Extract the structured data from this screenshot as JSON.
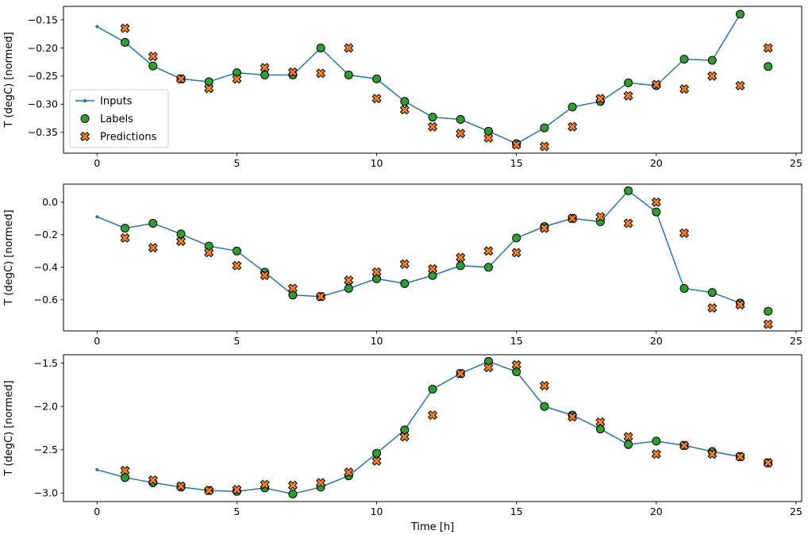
{
  "figure": {
    "xlabel": "Time [h]",
    "ylabel": "T (degC) [normed]",
    "background": "#ffffff",
    "colors": {
      "inputs": "#1f77b4",
      "labels": "#2ca02c",
      "predictions": "#ff7f0e",
      "marker_edge": "#000000",
      "axes": "#000000",
      "legend_border": "#cccccc"
    },
    "legend": {
      "position": "upper-plot-left",
      "items": [
        {
          "label": "Inputs",
          "marker": "line-dot"
        },
        {
          "label": "Labels",
          "marker": "circle"
        },
        {
          "label": "Predictions",
          "marker": "x"
        }
      ]
    }
  },
  "chart_data": [
    {
      "type": "line",
      "title": "",
      "xlabel": "",
      "ylabel": "T (degC) [normed]",
      "xlim": [
        -1.2,
        25.2
      ],
      "ylim": [
        -0.387,
        -0.126
      ],
      "xticks": [
        0,
        5,
        10,
        15,
        20,
        25
      ],
      "xtick_labels": [
        "0",
        "5",
        "10",
        "15",
        "20",
        "25"
      ],
      "yticks": [
        -0.15,
        -0.2,
        -0.25,
        -0.3,
        -0.35
      ],
      "ytick_labels": [
        "−0.15",
        "−0.20",
        "−0.25",
        "−0.30",
        "−0.35"
      ],
      "grid": false,
      "series": [
        {
          "name": "Inputs",
          "style": "line-dot",
          "x": [
            0,
            1,
            2,
            3,
            4,
            5,
            6,
            7,
            8,
            9,
            10,
            11,
            12,
            13,
            14,
            15,
            16,
            17,
            18,
            19,
            20,
            21,
            22,
            23
          ],
          "values": [
            -0.162,
            -0.19,
            -0.232,
            -0.255,
            -0.26,
            -0.244,
            -0.248,
            -0.248,
            -0.2,
            -0.248,
            -0.255,
            -0.295,
            -0.323,
            -0.327,
            -0.348,
            -0.37,
            -0.342,
            -0.305,
            -0.295,
            -0.262,
            -0.267,
            -0.22,
            -0.222,
            -0.14
          ]
        },
        {
          "name": "Labels",
          "style": "circle",
          "x": [
            1,
            2,
            3,
            4,
            5,
            6,
            7,
            8,
            9,
            10,
            11,
            12,
            13,
            14,
            15,
            16,
            17,
            18,
            19,
            20,
            21,
            22,
            23,
            24
          ],
          "values": [
            -0.19,
            -0.232,
            -0.255,
            -0.26,
            -0.244,
            -0.248,
            -0.248,
            -0.2,
            -0.248,
            -0.255,
            -0.295,
            -0.323,
            -0.327,
            -0.348,
            -0.37,
            -0.342,
            -0.305,
            -0.295,
            -0.262,
            -0.267,
            -0.22,
            -0.222,
            -0.14,
            -0.233
          ]
        },
        {
          "name": "Predictions",
          "style": "x",
          "x": [
            1,
            2,
            3,
            4,
            5,
            6,
            7,
            8,
            9,
            10,
            11,
            12,
            13,
            14,
            15,
            16,
            17,
            18,
            19,
            20,
            21,
            22,
            23,
            24
          ],
          "values": [
            -0.165,
            -0.215,
            -0.255,
            -0.272,
            -0.255,
            -0.235,
            -0.243,
            -0.245,
            -0.2,
            -0.29,
            -0.31,
            -0.34,
            -0.352,
            -0.36,
            -0.372,
            -0.375,
            -0.34,
            -0.29,
            -0.285,
            -0.265,
            -0.273,
            -0.25,
            -0.267,
            -0.2
          ]
        }
      ]
    },
    {
      "type": "line",
      "title": "",
      "xlabel": "",
      "ylabel": "T (degC) [normed]",
      "xlim": [
        -1.2,
        25.2
      ],
      "ylim": [
        -0.791,
        0.111
      ],
      "xticks": [
        0,
        5,
        10,
        15,
        20,
        25
      ],
      "xtick_labels": [
        "0",
        "5",
        "10",
        "15",
        "20",
        "25"
      ],
      "yticks": [
        0.0,
        -0.2,
        -0.4,
        -0.6
      ],
      "ytick_labels": [
        "0.0",
        "−0.2",
        "−0.4",
        "−0.6"
      ],
      "grid": false,
      "series": [
        {
          "name": "Inputs",
          "style": "line-dot",
          "x": [
            0,
            1,
            2,
            3,
            4,
            5,
            6,
            7,
            8,
            9,
            10,
            11,
            12,
            13,
            14,
            15,
            16,
            17,
            18,
            19,
            20,
            21,
            22,
            23
          ],
          "values": [
            -0.09,
            -0.16,
            -0.13,
            -0.195,
            -0.27,
            -0.3,
            -0.43,
            -0.57,
            -0.58,
            -0.53,
            -0.47,
            -0.5,
            -0.45,
            -0.39,
            -0.4,
            -0.22,
            -0.15,
            -0.1,
            -0.12,
            0.07,
            -0.06,
            -0.53,
            -0.555,
            -0.62
          ]
        },
        {
          "name": "Labels",
          "style": "circle",
          "x": [
            1,
            2,
            3,
            4,
            5,
            6,
            7,
            8,
            9,
            10,
            11,
            12,
            13,
            14,
            15,
            16,
            17,
            18,
            19,
            20,
            21,
            22,
            23,
            24
          ],
          "values": [
            -0.16,
            -0.13,
            -0.195,
            -0.27,
            -0.3,
            -0.43,
            -0.57,
            -0.58,
            -0.53,
            -0.47,
            -0.5,
            -0.45,
            -0.39,
            -0.4,
            -0.22,
            -0.15,
            -0.1,
            -0.12,
            0.07,
            -0.06,
            -0.53,
            -0.555,
            -0.62,
            -0.67
          ]
        },
        {
          "name": "Predictions",
          "style": "x",
          "x": [
            1,
            2,
            3,
            4,
            5,
            6,
            7,
            8,
            9,
            10,
            11,
            12,
            13,
            14,
            15,
            16,
            17,
            18,
            19,
            20,
            21,
            22,
            23,
            24
          ],
          "values": [
            -0.22,
            -0.28,
            -0.24,
            -0.31,
            -0.39,
            -0.45,
            -0.53,
            -0.58,
            -0.48,
            -0.43,
            -0.38,
            -0.41,
            -0.34,
            -0.3,
            -0.31,
            -0.16,
            -0.1,
            -0.09,
            -0.13,
            0.0,
            -0.19,
            -0.65,
            -0.63,
            -0.75
          ]
        }
      ]
    },
    {
      "type": "line",
      "title": "",
      "xlabel": "Time [h]",
      "ylabel": "T (degC) [normed]",
      "xlim": [
        -1.2,
        25.2
      ],
      "ylim": [
        -3.097,
        -1.403
      ],
      "xticks": [
        0,
        5,
        10,
        15,
        20,
        25
      ],
      "xtick_labels": [
        "0",
        "5",
        "10",
        "15",
        "20",
        "25"
      ],
      "yticks": [
        -1.5,
        -2.0,
        -2.5,
        -3.0
      ],
      "ytick_labels": [
        "−1.5",
        "−2.0",
        "−2.5",
        "−3.0"
      ],
      "grid": false,
      "series": [
        {
          "name": "Inputs",
          "style": "line-dot",
          "x": [
            0,
            1,
            2,
            3,
            4,
            5,
            6,
            7,
            8,
            9,
            10,
            11,
            12,
            13,
            14,
            15,
            16,
            17,
            18,
            19,
            20,
            21,
            22,
            23
          ],
          "values": [
            -2.73,
            -2.82,
            -2.88,
            -2.93,
            -2.97,
            -2.98,
            -2.94,
            -3.01,
            -2.93,
            -2.8,
            -2.54,
            -2.27,
            -1.8,
            -1.62,
            -1.48,
            -1.6,
            -2.0,
            -2.1,
            -2.26,
            -2.44,
            -2.4,
            -2.45,
            -2.52,
            -2.58
          ]
        },
        {
          "name": "Labels",
          "style": "circle",
          "x": [
            1,
            2,
            3,
            4,
            5,
            6,
            7,
            8,
            9,
            10,
            11,
            12,
            13,
            14,
            15,
            16,
            17,
            18,
            19,
            20,
            21,
            22,
            23,
            24
          ],
          "values": [
            -2.82,
            -2.88,
            -2.93,
            -2.97,
            -2.98,
            -2.94,
            -3.01,
            -2.93,
            -2.8,
            -2.54,
            -2.27,
            -1.8,
            -1.62,
            -1.48,
            -1.6,
            -2.0,
            -2.1,
            -2.26,
            -2.44,
            -2.4,
            -2.45,
            -2.52,
            -2.58,
            -2.65
          ]
        },
        {
          "name": "Predictions",
          "style": "x",
          "x": [
            1,
            2,
            3,
            4,
            5,
            6,
            7,
            8,
            9,
            10,
            11,
            12,
            13,
            14,
            15,
            16,
            17,
            18,
            19,
            20,
            21,
            22,
            23,
            24
          ],
          "values": [
            -2.74,
            -2.85,
            -2.92,
            -2.97,
            -2.96,
            -2.9,
            -2.91,
            -2.88,
            -2.76,
            -2.63,
            -2.35,
            -2.1,
            -1.62,
            -1.55,
            -1.52,
            -1.76,
            -2.12,
            -2.18,
            -2.35,
            -2.55,
            -2.45,
            -2.55,
            -2.58,
            -2.65
          ]
        }
      ]
    }
  ]
}
